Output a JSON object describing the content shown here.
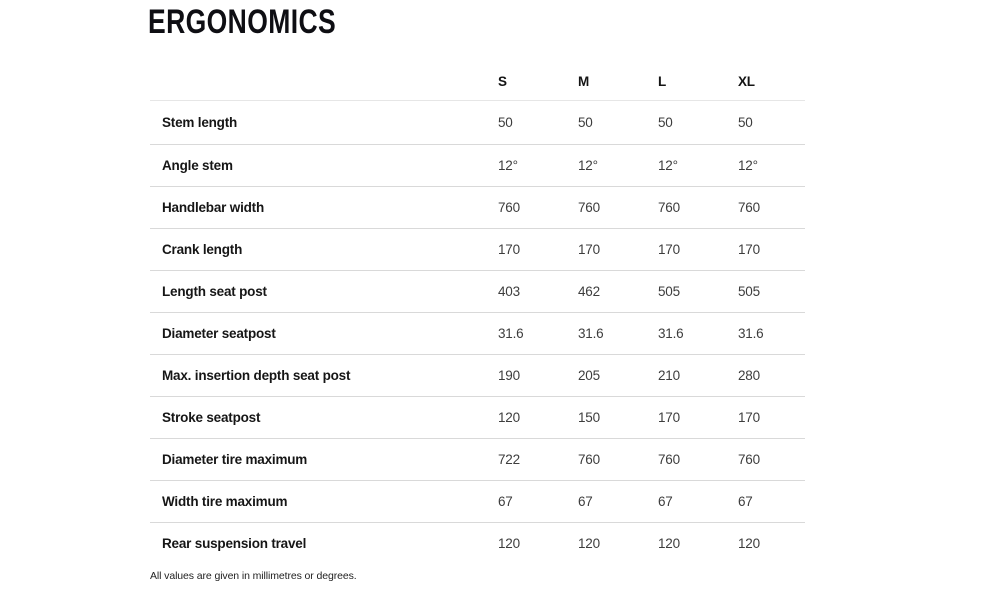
{
  "page": {
    "title": "ERGONOMICS",
    "footnote": "All values are given in millimetres or degrees."
  },
  "table": {
    "size_headers": [
      "S",
      "M",
      "L",
      "XL"
    ],
    "rows": [
      {
        "label": "Stem length",
        "values": [
          "50",
          "50",
          "50",
          "50"
        ]
      },
      {
        "label": "Angle stem",
        "values": [
          "12°",
          "12°",
          "12°",
          "12°"
        ]
      },
      {
        "label": "Handlebar width",
        "values": [
          "760",
          "760",
          "760",
          "760"
        ]
      },
      {
        "label": "Crank length",
        "values": [
          "170",
          "170",
          "170",
          "170"
        ]
      },
      {
        "label": "Length seat post",
        "values": [
          "403",
          "462",
          "505",
          "505"
        ]
      },
      {
        "label": "Diameter seatpost",
        "values": [
          "31.6",
          "31.6",
          "31.6",
          "31.6"
        ]
      },
      {
        "label": "Max. insertion depth seat post",
        "values": [
          "190",
          "205",
          "210",
          "280"
        ]
      },
      {
        "label": "Stroke seatpost",
        "values": [
          "120",
          "150",
          "170",
          "170"
        ]
      },
      {
        "label": "Diameter tire maximum",
        "values": [
          "722",
          "760",
          "760",
          "760"
        ]
      },
      {
        "label": "Width tire maximum",
        "values": [
          "67",
          "67",
          "67",
          "67"
        ]
      },
      {
        "label": "Rear suspension travel",
        "values": [
          "120",
          "120",
          "120",
          "120"
        ]
      }
    ]
  },
  "colors": {
    "row_divider": "#d9d9d9",
    "header_divider": "#e6e6e6",
    "label_text": "#161616",
    "value_text": "#3d3d3d"
  }
}
